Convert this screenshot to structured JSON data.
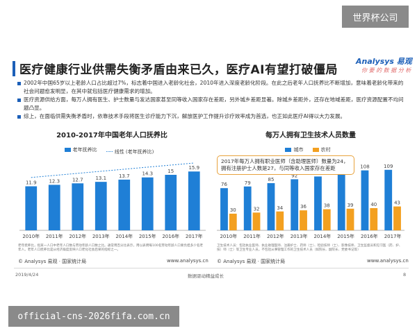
{
  "watermark_top": "世界杯公司",
  "watermark_bottom": "official-cns-2026fifa.com.cn",
  "title": "医疗健康行业供需失衡矛盾由来已久，医疗AI有望打破僵局",
  "logo": {
    "name": "Analysys 易观",
    "slogan": "你 要 的 数 据 分 析"
  },
  "bullets": [
    "2002年中国65岁以上老龄人口占比超过7%，标志着中国进入老龄化社会，2010年进入深度老龄化阶段。在此之后老年人口抚养比不断增加，意味着老龄化带来的社会问题愈发明显，在其中就包括医疗健康需求的增加。",
    "医疗资源供给方面，每万人拥有医生、护士数量与发达国家甚至同等收入国家存在差距，另外城乡差距显著。除城乡差距外，还存在地域差距，医疗资源配置不均问题凸显。",
    "综上，在面临供需失衡矛盾时，依靠技术手段将医生诊疗能力下沉，解放医护工作提升诊疗效率成为首选，也正如此医疗AI得以大力发展。"
  ],
  "chart_left": {
    "title": "2010-2017年中国老年人口抚养比",
    "legend": [
      "老年抚养比",
      "线性 (老年抚养比)"
    ],
    "note": "老年抚养比，指某一人口中老年人口数与劳动年龄人口数之比。通常用百分比表示，用以表明每100名劳动年龄人口要负担多少名老年人。老年人口抚养比是从经济角度反映人口老化社会后果的指标之一。",
    "source": "© Analysys 易观 · 国家统计局",
    "url": "www.analysys.cn"
  },
  "chart_right": {
    "title": "每万人拥有卫生技术人员数量",
    "legend": [
      "城市",
      "农村"
    ],
    "annotation": "2017年每万人拥有职业医师（含助理医师）数量为24，拥有注册护士人数是27，与同等收入国家存在差距",
    "note": "卫生技术人员：包括执业医师、执业助理医师、注册护士、药师（士）、检验技师（士）、影像技师、卫生监督员和见习医（药、护、技）师（士）等卫生专业人员。不包括从事管理工作的卫生技术人员（如院长、副院长、党委书记等）",
    "source": "© Analysys 易观 · 国家统计局",
    "url": "www.analysys.cn"
  },
  "footer": {
    "date": "2019/4/24",
    "center": "数据驱动精益成长",
    "page": "8"
  },
  "colors": {
    "blue": "#1f7fd6",
    "orange": "#f3a020",
    "title_accent": "#1c5fb8"
  },
  "chart_data": [
    {
      "type": "bar",
      "title": "2010-2017年中国老年人口抚养比",
      "categories": [
        "2010年",
        "2011年",
        "2012年",
        "2013年",
        "2014年",
        "2015年",
        "2016年",
        "2017年"
      ],
      "series": [
        {
          "name": "老年抚养比",
          "values": [
            11.9,
            12.3,
            12.7,
            13.1,
            13.7,
            14.3,
            15,
            15.9
          ]
        }
      ],
      "trendline": "线性 (老年抚养比)",
      "ylim": [
        0,
        18
      ]
    },
    {
      "type": "bar",
      "title": "每万人拥有卫生技术人员数量",
      "categories": [
        "2010年",
        "2011年",
        "2012年",
        "2013年",
        "2014年",
        "2015年",
        "2016年",
        "2017年"
      ],
      "series": [
        {
          "name": "城市",
          "values": [
            76,
            79,
            85,
            92,
            97,
            102,
            108,
            109
          ]
        },
        {
          "name": "农村",
          "values": [
            30,
            32,
            34,
            36,
            38,
            39,
            40,
            43
          ]
        }
      ],
      "ylim": [
        0,
        130
      ]
    }
  ]
}
